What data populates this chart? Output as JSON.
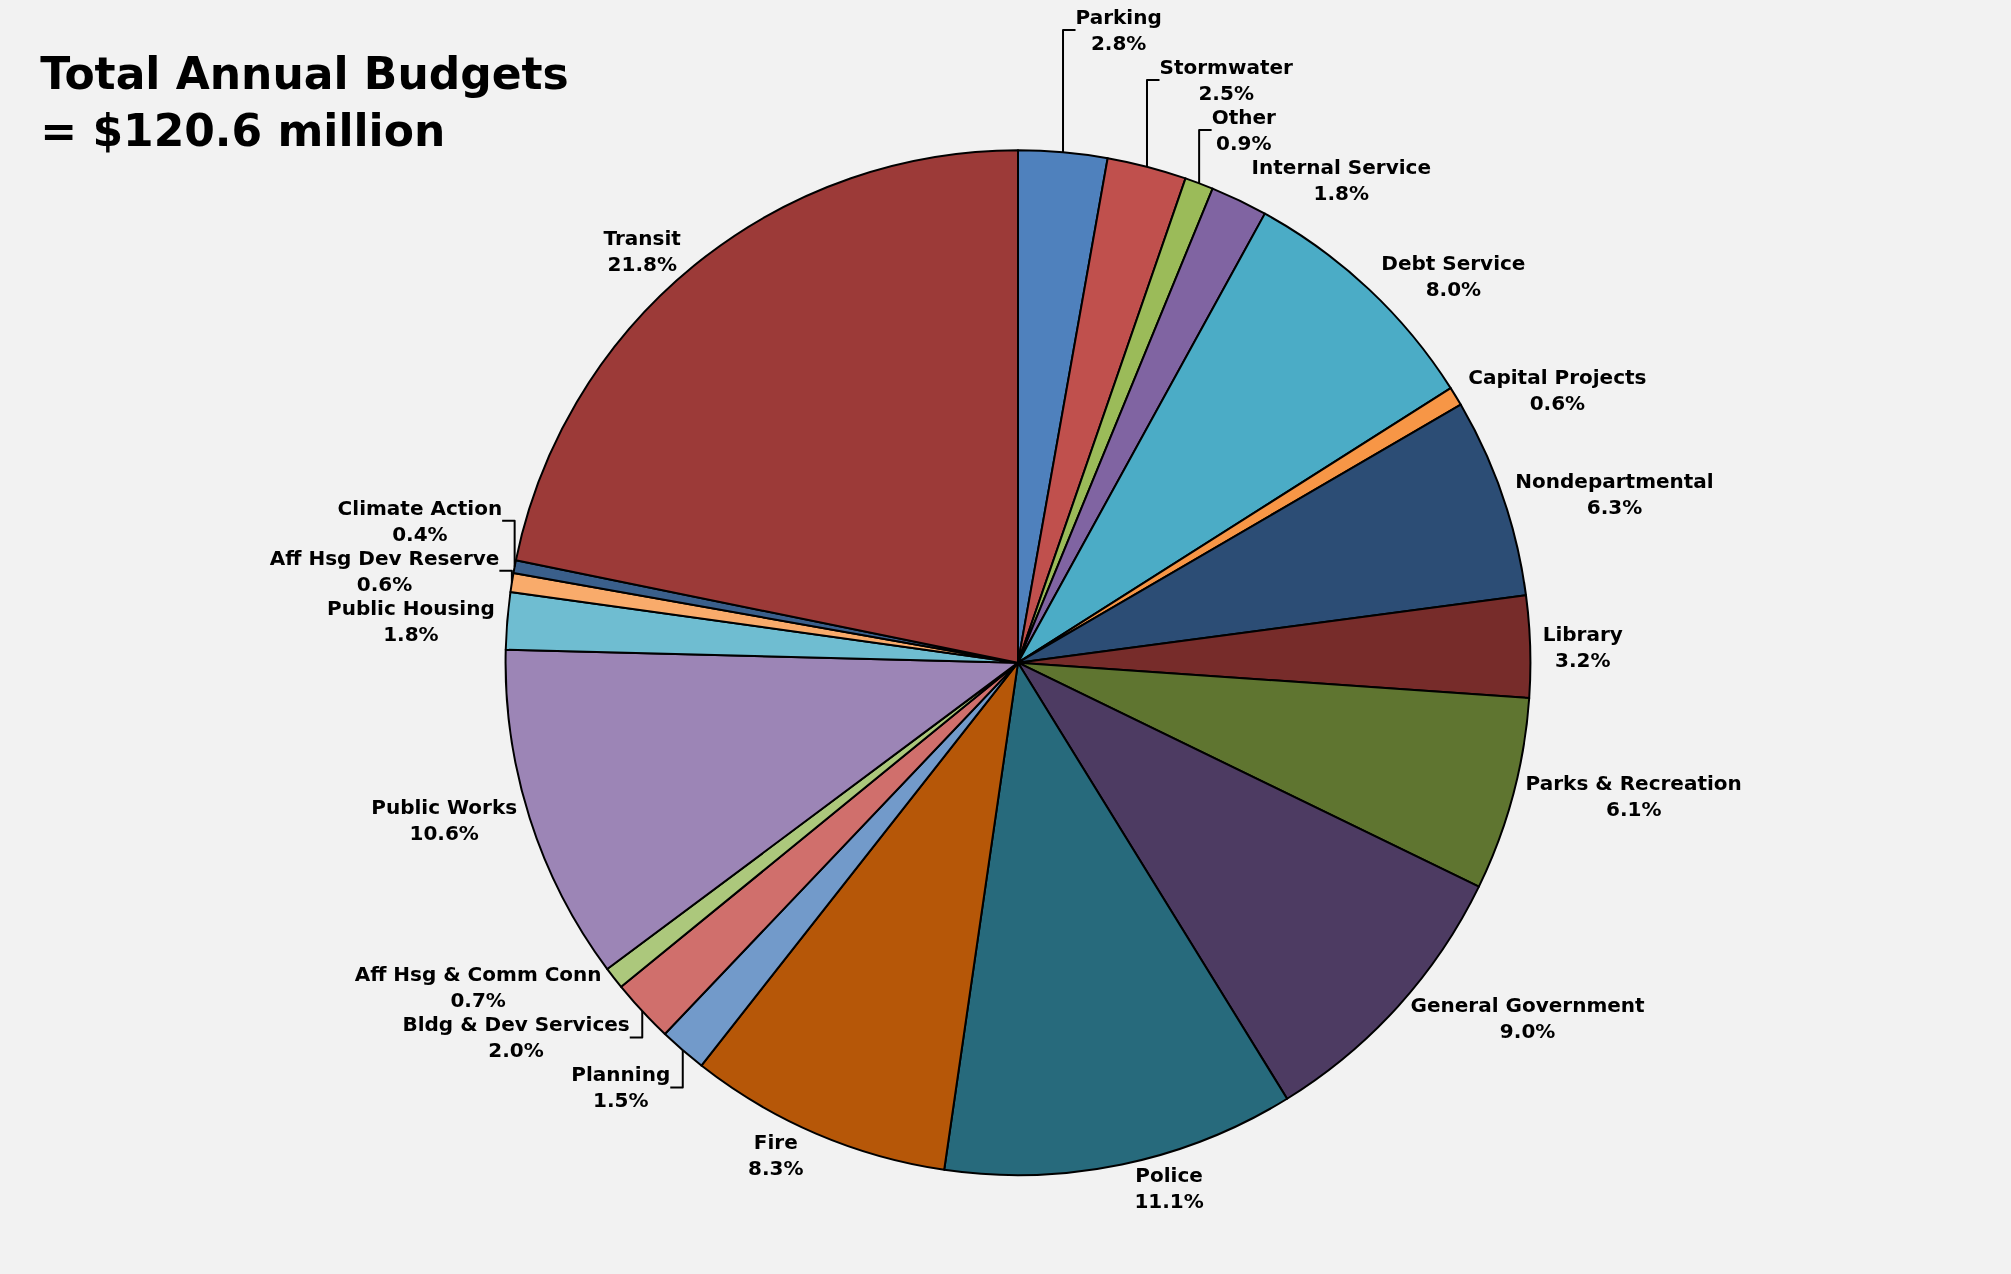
{
  "chart_data": {
    "type": "pie",
    "title": "Total Annual Budgets = $120.6 million",
    "categories": [
      "Parking",
      "Stormwater",
      "Other",
      "Internal Service",
      "Debt Service",
      "Capital Projects",
      "Nondepartmental",
      "Library",
      "Parks & Recreation",
      "General Government",
      "Police",
      "Fire",
      "Planning",
      "Bldg & Dev Services",
      "Aff Hsg & Comm Conn",
      "Public Works",
      "Public Housing",
      "Aff Hsg Dev Reserve",
      "Climate Action",
      "Transit"
    ],
    "values": [
      2.8,
      2.5,
      0.9,
      1.8,
      8.0,
      0.6,
      6.3,
      3.2,
      6.1,
      9.0,
      11.1,
      8.3,
      1.5,
      2.0,
      0.7,
      10.6,
      1.8,
      0.6,
      0.4,
      21.8
    ],
    "value_labels": [
      "2.8%",
      "2.5%",
      "0.9%",
      "1.8%",
      "8.0%",
      "0.6%",
      "6.3%",
      "3.2%",
      "6.1%",
      "9.0%",
      "11.1%",
      "8.3%",
      "1.5%",
      "2.0%",
      "0.7%",
      "10.6%",
      "1.8%",
      "0.6%",
      "0.4%",
      "21.8%"
    ],
    "colors": [
      "#4f81bd",
      "#c0504d",
      "#9bbb59",
      "#8064a2",
      "#4bacc6",
      "#f79646",
      "#2c4d75",
      "#772c2a",
      "#5f7530",
      "#4d3b62",
      "#276a7c",
      "#b65708",
      "#729aca",
      "#d06f6c",
      "#acc87c",
      "#9c85b6",
      "#6fbdd1",
      "#f9ab6b",
      "#3a5f8b",
      "#9c3a38"
    ],
    "legend": false
  }
}
